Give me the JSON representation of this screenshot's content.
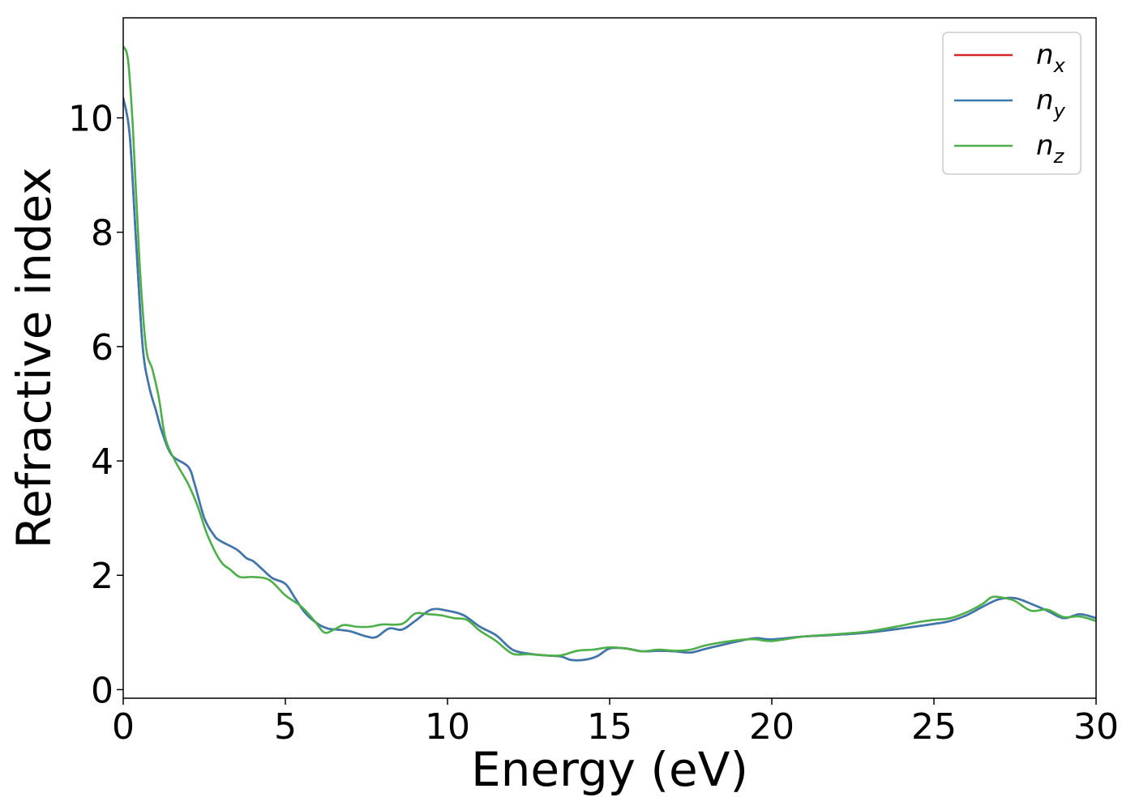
{
  "chart_data": {
    "type": "line",
    "xlabel": "Energy (eV)",
    "ylabel": "Refractive index",
    "xlim": [
      0,
      30
    ],
    "ylim": [
      -0.15,
      11.75
    ],
    "xticks": [
      0,
      5,
      10,
      15,
      20,
      25,
      30
    ],
    "yticks": [
      0,
      2,
      4,
      6,
      8,
      10
    ],
    "grid": false,
    "legend": "top-right",
    "colors": {
      "n_x": "#d62728",
      "n_y": "#3a78b0",
      "n_z": "#4daf4a"
    },
    "series": [
      {
        "id": "n_x",
        "name": "n",
        "subscript": "x",
        "x": [
          0,
          0.2,
          0.4,
          0.6,
          0.8,
          1.0,
          1.2,
          1.5,
          2.0,
          2.2,
          2.5,
          2.8,
          3.0,
          3.5,
          3.8,
          4.0,
          4.3,
          4.6,
          5.0,
          5.3,
          5.6,
          6.0,
          6.3,
          6.6,
          7.0,
          7.5,
          7.8,
          8.2,
          8.6,
          9.0,
          9.5,
          10.0,
          10.5,
          11.0,
          11.5,
          12.0,
          12.5,
          13.0,
          13.5,
          13.8,
          14.2,
          14.6,
          15.0,
          15.5,
          16.0,
          16.5,
          17.0,
          17.5,
          18.0,
          19.0,
          19.5,
          20.0,
          21.0,
          22.0,
          23.0,
          24.0,
          25.0,
          25.5,
          26.0,
          26.5,
          27.0,
          27.5,
          28.0,
          28.5,
          29.0,
          29.5,
          30.0
        ],
        "values": [
          10.35,
          9.7,
          7.8,
          6.0,
          5.3,
          4.9,
          4.5,
          4.1,
          3.9,
          3.6,
          3.0,
          2.7,
          2.6,
          2.45,
          2.3,
          2.25,
          2.1,
          1.95,
          1.85,
          1.6,
          1.35,
          1.15,
          1.07,
          1.05,
          1.02,
          0.93,
          0.92,
          1.07,
          1.05,
          1.2,
          1.4,
          1.38,
          1.3,
          1.1,
          0.95,
          0.7,
          0.63,
          0.6,
          0.58,
          0.52,
          0.52,
          0.58,
          0.72,
          0.72,
          0.67,
          0.68,
          0.67,
          0.65,
          0.72,
          0.85,
          0.9,
          0.88,
          0.93,
          0.96,
          1.0,
          1.07,
          1.15,
          1.2,
          1.3,
          1.45,
          1.58,
          1.6,
          1.5,
          1.38,
          1.25,
          1.32,
          1.25
        ]
      },
      {
        "id": "n_y",
        "name": "n",
        "subscript": "y",
        "x": [
          0,
          0.2,
          0.4,
          0.6,
          0.8,
          1.0,
          1.2,
          1.5,
          2.0,
          2.2,
          2.5,
          2.8,
          3.0,
          3.5,
          3.8,
          4.0,
          4.3,
          4.6,
          5.0,
          5.3,
          5.6,
          6.0,
          6.3,
          6.6,
          7.0,
          7.5,
          7.8,
          8.2,
          8.6,
          9.0,
          9.5,
          10.0,
          10.5,
          11.0,
          11.5,
          12.0,
          12.5,
          13.0,
          13.5,
          13.8,
          14.2,
          14.6,
          15.0,
          15.5,
          16.0,
          16.5,
          17.0,
          17.5,
          18.0,
          19.0,
          19.5,
          20.0,
          21.0,
          22.0,
          23.0,
          24.0,
          25.0,
          25.5,
          26.0,
          26.5,
          27.0,
          27.5,
          28.0,
          28.5,
          29.0,
          29.5,
          30.0
        ],
        "values": [
          10.35,
          9.7,
          7.8,
          6.0,
          5.3,
          4.9,
          4.5,
          4.1,
          3.9,
          3.6,
          3.0,
          2.7,
          2.6,
          2.45,
          2.3,
          2.25,
          2.1,
          1.95,
          1.85,
          1.6,
          1.35,
          1.15,
          1.07,
          1.05,
          1.02,
          0.93,
          0.92,
          1.07,
          1.05,
          1.2,
          1.4,
          1.38,
          1.3,
          1.1,
          0.95,
          0.7,
          0.63,
          0.6,
          0.58,
          0.52,
          0.52,
          0.58,
          0.72,
          0.72,
          0.67,
          0.68,
          0.67,
          0.65,
          0.72,
          0.85,
          0.9,
          0.88,
          0.93,
          0.96,
          1.0,
          1.07,
          1.15,
          1.2,
          1.3,
          1.45,
          1.58,
          1.6,
          1.5,
          1.38,
          1.25,
          1.32,
          1.25
        ]
      },
      {
        "id": "n_z",
        "name": "n",
        "subscript": "z",
        "x": [
          0,
          0.15,
          0.3,
          0.5,
          0.7,
          0.9,
          1.1,
          1.3,
          1.6,
          2.0,
          2.3,
          2.6,
          3.0,
          3.3,
          3.6,
          4.0,
          4.5,
          5.0,
          5.5,
          5.9,
          6.2,
          6.5,
          6.8,
          7.2,
          7.6,
          8.0,
          8.6,
          9.0,
          9.4,
          9.8,
          10.2,
          10.6,
          11.0,
          11.5,
          12.0,
          12.5,
          13.0,
          13.5,
          14.0,
          14.5,
          15.0,
          15.5,
          16.0,
          16.5,
          17.0,
          17.5,
          18.0,
          19.0,
          19.5,
          20.0,
          21.0,
          22.0,
          23.0,
          24.0,
          24.5,
          25.0,
          25.5,
          26.0,
          26.5,
          26.8,
          27.2,
          27.5,
          28.0,
          28.5,
          29.0,
          29.5,
          30.0
        ],
        "values": [
          11.25,
          11.0,
          9.8,
          7.5,
          6.0,
          5.6,
          5.1,
          4.4,
          4.0,
          3.6,
          3.2,
          2.7,
          2.25,
          2.1,
          1.97,
          1.97,
          1.92,
          1.65,
          1.45,
          1.2,
          1.0,
          1.05,
          1.13,
          1.1,
          1.1,
          1.14,
          1.15,
          1.33,
          1.32,
          1.3,
          1.25,
          1.22,
          1.03,
          0.85,
          0.63,
          0.62,
          0.6,
          0.6,
          0.68,
          0.7,
          0.74,
          0.72,
          0.67,
          0.7,
          0.68,
          0.7,
          0.78,
          0.87,
          0.88,
          0.85,
          0.93,
          0.97,
          1.02,
          1.12,
          1.18,
          1.22,
          1.25,
          1.35,
          1.5,
          1.62,
          1.6,
          1.55,
          1.38,
          1.4,
          1.27,
          1.28,
          1.2
        ]
      }
    ]
  }
}
